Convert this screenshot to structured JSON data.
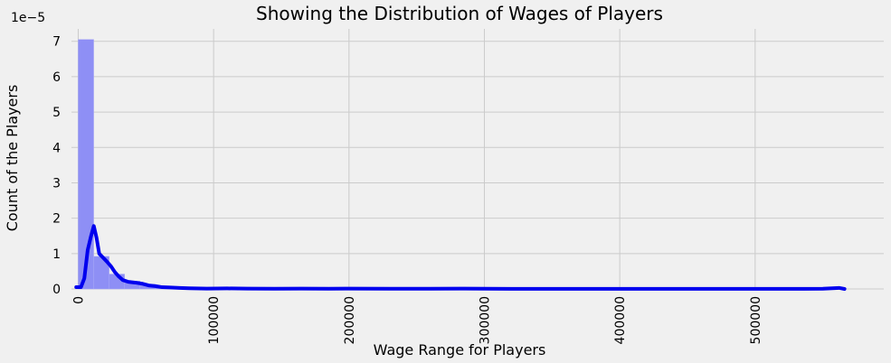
{
  "chart_data": {
    "type": "bar",
    "title": "Showing the Distribution of Wages of Players",
    "xlabel": "Wage Range for Players",
    "ylabel": "Count of the Players",
    "y_offset_label": "1e−5",
    "xlim": [
      -5000,
      595000
    ],
    "ylim": [
      0,
      7.35
    ],
    "x_ticks": [
      0,
      100000,
      200000,
      300000,
      400000,
      500000
    ],
    "x_tick_labels": [
      "0",
      "100000",
      "200000",
      "300000",
      "400000",
      "500000"
    ],
    "y_ticks": [
      0,
      1,
      2,
      3,
      4,
      5,
      6,
      7
    ],
    "y_tick_labels": [
      "0",
      "1",
      "2",
      "3",
      "4",
      "5",
      "6",
      "7"
    ],
    "grid": true,
    "bin_width": 11400,
    "histogram": [
      {
        "x0": 0,
        "x1": 11400,
        "height": 7.05
      },
      {
        "x0": 11400,
        "x1": 22800,
        "height": 0.92
      },
      {
        "x0": 22800,
        "x1": 34200,
        "height": 0.42
      },
      {
        "x0": 34200,
        "x1": 45600,
        "height": 0.22
      },
      {
        "x0": 45600,
        "x1": 57000,
        "height": 0.13
      },
      {
        "x0": 57000,
        "x1": 68400,
        "height": 0.08
      },
      {
        "x0": 68400,
        "x1": 79800,
        "height": 0.05
      },
      {
        "x0": 79800,
        "x1": 91200,
        "height": 0.03
      },
      {
        "x0": 91200,
        "x1": 102600,
        "height": 0.02
      },
      {
        "x0": 102600,
        "x1": 114000,
        "height": 0.02
      },
      {
        "x0": 114000,
        "x1": 125400,
        "height": 0.02
      },
      {
        "x0": 125400,
        "x1": 136800,
        "height": 0.01
      },
      {
        "x0": 136800,
        "x1": 148200,
        "height": 0.01
      },
      {
        "x0": 148200,
        "x1": 159600,
        "height": 0.01
      },
      {
        "x0": 159600,
        "x1": 171000,
        "height": 0.01
      },
      {
        "x0": 193800,
        "x1": 205200,
        "height": 0.01
      },
      {
        "x0": 273600,
        "x1": 285000,
        "height": 0.01
      },
      {
        "x0": 547200,
        "x1": 558600,
        "height": 0.01
      }
    ],
    "series": [
      {
        "type": "kde-line",
        "color": "#0000ee",
        "points": [
          [
            -1500,
            0.05
          ],
          [
            2000,
            0.05
          ],
          [
            4500,
            0.3
          ],
          [
            7000,
            1.1
          ],
          [
            9500,
            1.5
          ],
          [
            11500,
            1.78
          ],
          [
            13500,
            1.45
          ],
          [
            15500,
            1.0
          ],
          [
            18000,
            0.9
          ],
          [
            21000,
            0.78
          ],
          [
            24000,
            0.65
          ],
          [
            27000,
            0.48
          ],
          [
            30000,
            0.35
          ],
          [
            33000,
            0.25
          ],
          [
            37000,
            0.2
          ],
          [
            42000,
            0.18
          ],
          [
            47000,
            0.15
          ],
          [
            52000,
            0.1
          ],
          [
            57000,
            0.08
          ],
          [
            62000,
            0.05
          ],
          [
            68000,
            0.04
          ],
          [
            75000,
            0.03
          ],
          [
            82000,
            0.02
          ],
          [
            95000,
            0.01
          ],
          [
            110000,
            0.015
          ],
          [
            125000,
            0.01
          ],
          [
            145000,
            0.005
          ],
          [
            165000,
            0.01
          ],
          [
            185000,
            0.005
          ],
          [
            200000,
            0.01
          ],
          [
            230000,
            0.005
          ],
          [
            260000,
            0.005
          ],
          [
            285000,
            0.01
          ],
          [
            320000,
            0.003
          ],
          [
            360000,
            0.002
          ],
          [
            400000,
            0.002
          ],
          [
            440000,
            0.002
          ],
          [
            480000,
            0.002
          ],
          [
            520000,
            0.002
          ],
          [
            550000,
            0.005
          ],
          [
            562000,
            0.03
          ],
          [
            566000,
            0.0
          ]
        ]
      }
    ],
    "colors": {
      "background": "#f0f0f0",
      "grid": "#cbcbcb",
      "bar_fill": "#8e8ff5",
      "bar_stroke": "#a6a6f6",
      "line": "#0000ee"
    }
  }
}
